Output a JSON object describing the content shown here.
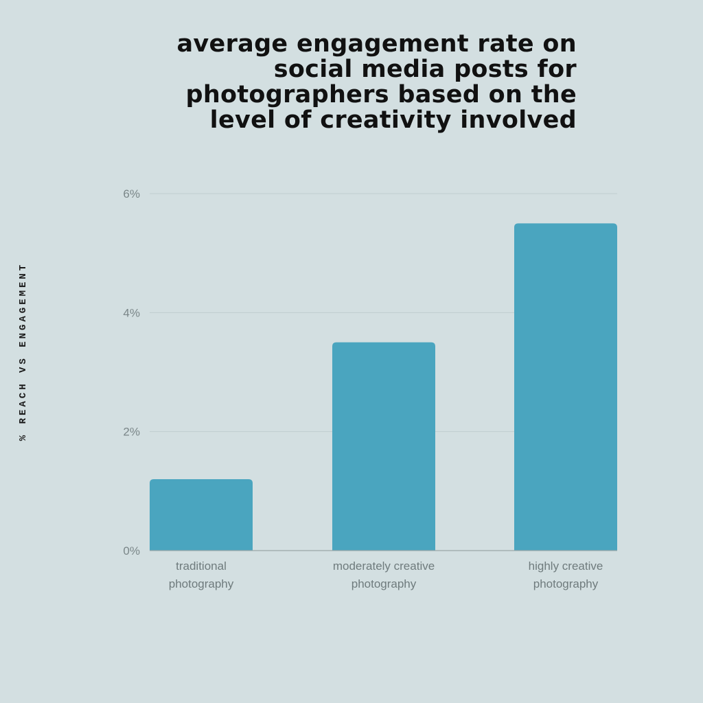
{
  "chart_data": {
    "type": "bar",
    "title": "average engagement rate on social media posts for photographers based on the level of creativity involved",
    "title_lines": [
      "average engagement rate on",
      "social media posts for",
      "photographers based on the",
      "level of creativity involved"
    ],
    "ylabel": "% REACH VS ENGAGEMENT",
    "xlabel": "",
    "categories": [
      [
        "traditional",
        "photography"
      ],
      [
        "moderately creative",
        "photography"
      ],
      [
        "highly creative",
        "photography"
      ]
    ],
    "values": [
      1.2,
      3.5,
      5.5
    ],
    "ylim": [
      0,
      6
    ],
    "yticks": [
      0,
      2,
      4,
      6
    ],
    "ytick_labels": [
      "0%",
      "2%",
      "4%",
      "6%"
    ],
    "grid": true,
    "bar_color": "#4aa5bf",
    "grid_color": "#bfcdd0",
    "axis_color": "#9aa6a8"
  }
}
